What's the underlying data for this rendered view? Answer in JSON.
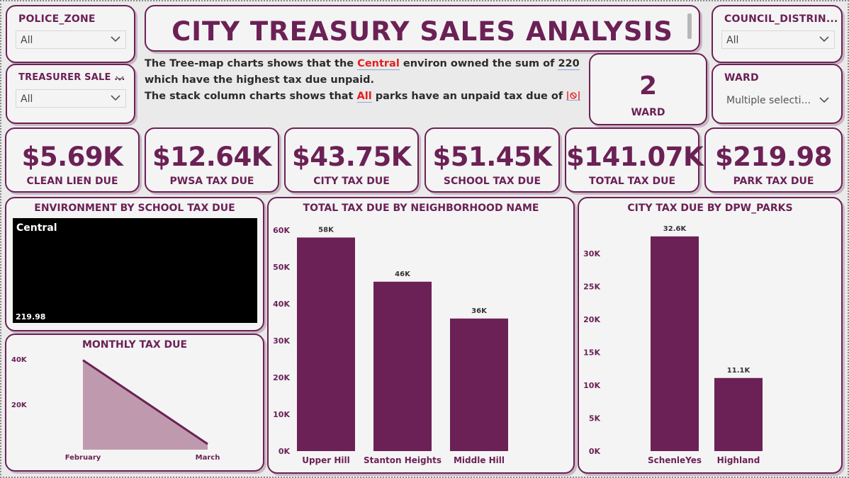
{
  "title": "CITY TREASURY SALES ANALYSIS",
  "slicers": {
    "police_zone": {
      "label": "POLICE_ZONE",
      "value": "All"
    },
    "treasurer_sale": {
      "label": "TREASURER SALE ...",
      "value": "All"
    },
    "council_district": {
      "label": "COUNCIL_DISTRIN...",
      "value": "All"
    },
    "ward": {
      "label": "WARD",
      "value": "Multiple selecti..."
    }
  },
  "narrative": {
    "l1a": "The Tree-map charts shows that the ",
    "l1hl": "Central",
    "l1b": " environ owned the sum of ",
    "l1num": "220",
    "l2": "which have the highest tax due unpaid.",
    "l3a": "The stack column charts shows that ",
    "l3hl": "All",
    "l3b": " parks have an unpaid tax due of "
  },
  "ward_card": {
    "value": "2",
    "label": "WARD"
  },
  "kpis": [
    {
      "value": "$5.69K",
      "label": "CLEAN LIEN DUE"
    },
    {
      "value": "$12.64K",
      "label": "PWSA TAX DUE"
    },
    {
      "value": "$43.75K",
      "label": "CITY TAX DUE"
    },
    {
      "value": "$51.45K",
      "label": "SCHOOL TAX DUE"
    },
    {
      "value": "$141.07K",
      "label": "TOTAL TAX DUE"
    },
    {
      "value": "$219.98",
      "label": "PARK TAX DUE"
    }
  ],
  "colors": {
    "accent": "#6b2155",
    "bar": "#6b2155",
    "area": "#bf9aae",
    "highlight": "#e51d1d",
    "treemap": "#000000"
  },
  "chart_data": [
    {
      "type": "treemap",
      "title": "ENVIRONMENT BY SCHOOL TAX DUE",
      "categories": [
        "Central"
      ],
      "values": [
        219.98
      ],
      "value_labels": [
        "219.98"
      ]
    },
    {
      "type": "area",
      "title": "MONTHLY TAX DUE",
      "categories": [
        "February",
        "March"
      ],
      "values": [
        39500,
        2500
      ],
      "ylim": [
        0,
        40000
      ],
      "yticks": [
        {
          "v": 40000,
          "label": "40K"
        },
        {
          "v": 20000,
          "label": "20K"
        }
      ]
    },
    {
      "type": "bar",
      "title": "TOTAL TAX DUE BY NEIGHBORHOOD NAME",
      "categories": [
        "Upper Hill",
        "Stanton Heights",
        "Middle Hill"
      ],
      "values": [
        58000,
        46000,
        36000
      ],
      "value_labels": [
        "58K",
        "46K",
        "36K"
      ],
      "ylim": [
        0,
        60000
      ],
      "yticks": [
        {
          "v": 60000,
          "label": "60K"
        },
        {
          "v": 50000,
          "label": "50K"
        },
        {
          "v": 40000,
          "label": "40K"
        },
        {
          "v": 30000,
          "label": "30K"
        },
        {
          "v": 20000,
          "label": "20K"
        },
        {
          "v": 10000,
          "label": "10K"
        },
        {
          "v": 0,
          "label": "0K"
        }
      ]
    },
    {
      "type": "bar",
      "title": "CITY TAX DUE BY DPW_PARKS",
      "categories": [
        "SchenleYes",
        "Highland"
      ],
      "values": [
        32600,
        11100
      ],
      "value_labels": [
        "32.6K",
        "11.1K"
      ],
      "ylim": [
        0,
        30000
      ],
      "yticks": [
        {
          "v": 30000,
          "label": "30K"
        },
        {
          "v": 25000,
          "label": "25K"
        },
        {
          "v": 20000,
          "label": "20K"
        },
        {
          "v": 15000,
          "label": "15K"
        },
        {
          "v": 10000,
          "label": "10K"
        },
        {
          "v": 5000,
          "label": "5K"
        },
        {
          "v": 0,
          "label": "0K"
        }
      ]
    }
  ]
}
